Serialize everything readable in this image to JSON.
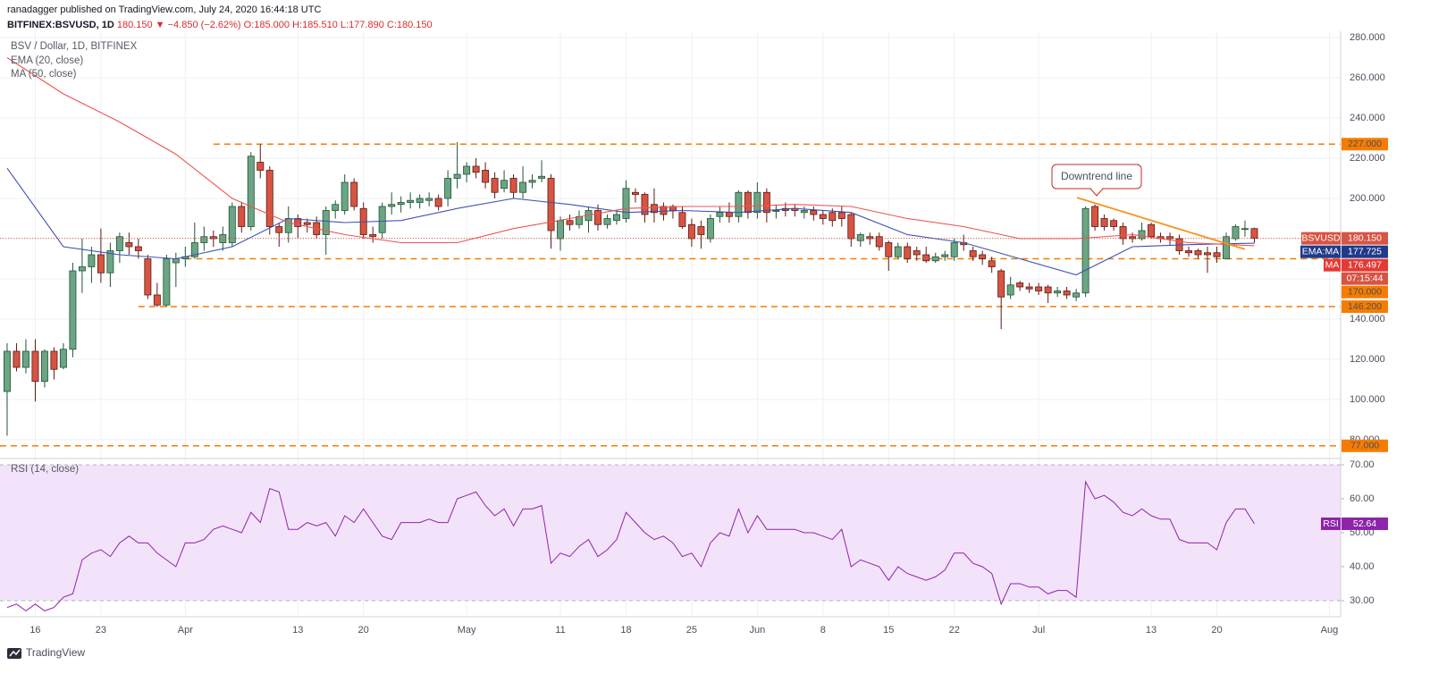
{
  "header": {
    "publisher": "ranadagger published on TradingView.com, July 24, 2020 16:44:18 UTC",
    "symbol": "BITFINEX:BSVUSD, 1D",
    "change": "180.150 ▼ −4.850 (−2.62%)",
    "ohlc": "O:185.000 H:185.510 L:177.890 C:180.150"
  },
  "footer": "TradingView",
  "chart_data": [
    {
      "type": "candlestick",
      "title": "BSV / Dollar, 1D, BITFINEX",
      "symbol_tag": "BSVUSD",
      "countdown": "07:15:44",
      "up_color": "#6ba583",
      "down_color": "#d75442",
      "open": [
        104,
        124,
        116,
        124,
        109,
        124,
        116,
        125,
        164,
        166,
        172,
        163,
        174,
        178,
        176,
        170,
        152,
        147,
        168,
        170,
        171,
        178,
        181,
        178,
        178,
        196,
        186,
        218,
        214,
        186,
        183,
        190,
        188,
        188,
        182,
        194,
        194,
        208,
        195,
        182,
        183,
        196,
        197,
        198,
        198,
        199,
        200,
        200,
        210,
        212,
        216,
        214,
        210,
        205,
        210,
        203,
        208,
        210,
        210,
        180,
        189,
        187,
        189,
        194,
        187,
        189,
        190,
        203,
        202,
        197,
        196,
        196,
        193,
        187,
        186,
        180,
        191,
        193,
        191,
        203,
        193,
        203,
        194,
        195,
        195,
        193,
        194,
        192,
        193,
        193,
        192,
        179,
        181,
        181,
        178,
        171,
        176,
        174,
        172,
        169,
        171,
        171,
        178,
        174,
        172,
        169,
        164,
        152,
        158,
        156,
        156,
        156,
        153,
        154,
        151,
        153,
        196,
        190,
        189,
        186,
        181,
        180,
        187,
        181,
        181,
        180,
        174,
        174,
        173,
        173,
        170,
        180,
        185,
        185
      ],
      "high": [
        128,
        128,
        130,
        130,
        125,
        126,
        128,
        168,
        180,
        176,
        185,
        178,
        183,
        183,
        180,
        172,
        158,
        172,
        173,
        176,
        188,
        186,
        184,
        186,
        198,
        198,
        223,
        227,
        216,
        188,
        196,
        192,
        190,
        191,
        196,
        199,
        212,
        210,
        198,
        186,
        198,
        203,
        201,
        203,
        202,
        203,
        202,
        214,
        228,
        218,
        220,
        218,
        213,
        214,
        212,
        216,
        212,
        219,
        212,
        191,
        192,
        194,
        196,
        197,
        192,
        194,
        209,
        205,
        203,
        205,
        198,
        197,
        196,
        190,
        189,
        192,
        196,
        198,
        204,
        204,
        208,
        205,
        197,
        198,
        197,
        196,
        196,
        194,
        195,
        196,
        193,
        183,
        183,
        183,
        179,
        178,
        178,
        176,
        176,
        173,
        174,
        180,
        182,
        176,
        174,
        171,
        165,
        161,
        159,
        158,
        158,
        157,
        156,
        156,
        155,
        196,
        197,
        192,
        190,
        188,
        183,
        188,
        188,
        183,
        183,
        182,
        176,
        175,
        176,
        176,
        183,
        187,
        189,
        185.51
      ],
      "low": [
        82,
        114,
        113,
        99,
        106,
        110,
        115,
        121,
        153,
        158,
        158,
        156,
        168,
        172,
        170,
        150,
        146,
        146,
        156,
        166,
        170,
        174,
        176,
        174,
        176,
        183,
        184,
        210,
        182,
        176,
        178,
        180,
        183,
        180,
        172,
        190,
        192,
        194,
        180,
        178,
        180,
        192,
        193,
        195,
        195,
        196,
        194,
        196,
        205,
        208,
        210,
        205,
        200,
        203,
        200,
        200,
        205,
        208,
        175,
        174,
        184,
        185,
        183,
        184,
        185,
        187,
        188,
        198,
        188,
        188,
        189,
        190,
        185,
        176,
        175,
        178,
        188,
        188,
        188,
        190,
        190,
        188,
        190,
        191,
        191,
        190,
        189,
        187,
        186,
        186,
        176,
        176,
        177,
        174,
        164,
        170,
        168,
        169,
        168,
        168,
        169,
        169,
        174,
        169,
        167,
        163,
        135,
        150,
        154,
        153,
        152,
        148,
        151,
        150,
        149,
        151,
        184,
        184,
        184,
        177,
        178,
        179,
        180,
        178,
        177,
        172,
        171,
        170,
        163,
        168,
        170,
        179,
        181,
        177.89
      ],
      "close": [
        124,
        116,
        124,
        109,
        124,
        115,
        125,
        164,
        166,
        172,
        163,
        174,
        181,
        176,
        174,
        152,
        147,
        170,
        170,
        171,
        178,
        181,
        180,
        182,
        196,
        186,
        221,
        214,
        186,
        183,
        190,
        186,
        187,
        182,
        194,
        197,
        208,
        196,
        182,
        181,
        196,
        197,
        198,
        199,
        200,
        200,
        196,
        210,
        212,
        216,
        213,
        208,
        203,
        209,
        203,
        208,
        209,
        211,
        184,
        189,
        187,
        191,
        194,
        187,
        190,
        192,
        205,
        202,
        192,
        193,
        192,
        194,
        186,
        180,
        182,
        190,
        193,
        191,
        203,
        193,
        203,
        193,
        194,
        194,
        194,
        194,
        192,
        190,
        189,
        190,
        180,
        182,
        180,
        176,
        171,
        176,
        170,
        172,
        169,
        171,
        172,
        178,
        177,
        171,
        170,
        166,
        151,
        157,
        156,
        155,
        154,
        153,
        154,
        152,
        153,
        195,
        186,
        186,
        186,
        180,
        180,
        184,
        181,
        180,
        180,
        174,
        173,
        172,
        172,
        171,
        181,
        186,
        185,
        180.15
      ],
      "last_price": {
        "value": 180.15,
        "label": "180.150"
      },
      "xlim": [
        -0.76,
        142.2
      ],
      "xticks": [
        {
          "value": 3,
          "label": "16"
        },
        {
          "value": 10,
          "label": "23"
        },
        {
          "value": 19,
          "label": "Apr"
        },
        {
          "value": 31,
          "label": "13"
        },
        {
          "value": 38,
          "label": "20"
        },
        {
          "value": 49,
          "label": "May"
        },
        {
          "value": 59,
          "label": "11"
        },
        {
          "value": 66,
          "label": "18"
        },
        {
          "value": 73,
          "label": "25"
        },
        {
          "value": 80,
          "label": "Jun"
        },
        {
          "value": 87,
          "label": "8"
        },
        {
          "value": 94,
          "label": "15"
        },
        {
          "value": 101,
          "label": "22"
        },
        {
          "value": 110,
          "label": "Jul"
        },
        {
          "value": 122,
          "label": "13"
        },
        {
          "value": 129,
          "label": "20"
        },
        {
          "value": 141,
          "label": "Aug"
        }
      ],
      "ylim": [
        71.11,
        283.11
      ],
      "yticks": [
        {
          "value": 80,
          "label": "80.000"
        },
        {
          "value": 100,
          "label": "100.000"
        },
        {
          "value": 120,
          "label": "120.000"
        },
        {
          "value": 140,
          "label": "140.000"
        },
        {
          "value": 160,
          "label": "160.000"
        },
        {
          "value": 180,
          "label": "180.000"
        },
        {
          "value": 200,
          "label": "200.000"
        },
        {
          "value": 220,
          "label": "220.000"
        },
        {
          "value": 240,
          "label": "240.000"
        },
        {
          "value": 260,
          "label": "260.000"
        },
        {
          "value": 280,
          "label": "280.000"
        }
      ],
      "grid": true,
      "level_color": "#f57c00",
      "levels": [
        {
          "value": 227,
          "label": "227.000",
          "start": 22
        },
        {
          "value": 170,
          "label": "170.000",
          "start": 19
        },
        {
          "value": 146.2,
          "label": "146.200",
          "start": 14
        },
        {
          "value": 77,
          "label": "77.000"
        }
      ],
      "overlays": [
        {
          "name": "EMA (20, close)",
          "tag": "EMA:MA",
          "color": "#3f51b5",
          "tag_color": "#1f3a8a",
          "x": [
            0,
            6,
            12,
            18,
            24,
            30,
            36,
            42,
            48,
            54,
            60,
            66,
            72,
            78,
            84,
            90,
            96,
            102,
            108,
            114,
            120,
            126,
            133
          ],
          "values": [
            215,
            176,
            172,
            170,
            176,
            190,
            188,
            189,
            195,
            200,
            197,
            193,
            194,
            193,
            195,
            193,
            182,
            178,
            170,
            162,
            176,
            177,
            177.725
          ]
        },
        {
          "name": "MA (50, close)",
          "tag": "MA",
          "color": "#ef5350",
          "tag_color": "#e53935",
          "x": [
            0,
            6,
            12,
            18,
            24,
            30,
            36,
            42,
            48,
            54,
            60,
            66,
            72,
            78,
            84,
            90,
            96,
            102,
            108,
            114,
            120,
            126,
            133
          ],
          "values": [
            270,
            252,
            238,
            222,
            200,
            188,
            182,
            178,
            178,
            185,
            190,
            195,
            196,
            196,
            197,
            196,
            190,
            186,
            180,
            180,
            182,
            178,
            176.497
          ]
        }
      ],
      "trendline": {
        "color": "#f7931a",
        "x": [
          114.1,
          132
        ],
        "values": [
          200.4,
          174.7
        ]
      },
      "annotation": "Downtrend line"
    },
    {
      "type": "line",
      "title": "RSI (14, close)",
      "series": [
        {
          "name": "RSI",
          "color": "#8e24aa",
          "values": [
            28,
            29,
            27,
            29,
            27,
            28,
            31,
            32,
            42,
            44,
            45,
            43,
            47,
            49,
            47,
            47,
            44,
            42,
            40,
            47,
            47,
            48,
            51,
            52,
            51,
            50,
            56,
            53,
            63,
            62,
            51,
            51,
            53,
            52,
            53,
            49,
            55,
            53,
            57,
            53,
            49,
            48,
            53,
            53,
            53,
            54,
            53,
            53,
            60,
            61,
            62,
            58,
            55,
            57,
            52,
            57,
            57,
            58,
            41,
            44,
            43,
            46,
            48,
            43,
            45,
            48,
            56,
            53,
            50,
            48,
            49,
            47,
            43,
            44,
            40,
            47,
            50,
            49,
            57,
            50,
            55,
            51,
            51,
            51,
            51,
            50,
            50,
            49,
            48,
            51,
            40,
            42,
            41,
            40,
            36,
            40,
            38,
            37,
            36,
            37,
            39,
            44,
            44,
            41,
            40,
            38,
            29,
            35,
            35,
            34,
            34,
            32,
            33,
            33,
            31,
            65,
            60,
            61,
            59,
            56,
            55,
            57,
            55,
            54,
            54,
            48,
            47,
            47,
            47,
            45,
            53,
            57,
            57,
            52.64
          ]
        }
      ],
      "ylim": [
        25.26,
        71.32
      ],
      "yticks": [
        {
          "value": 30,
          "label": "30.00"
        },
        {
          "value": 40,
          "label": "40.00"
        },
        {
          "value": 50,
          "label": "50.00"
        },
        {
          "value": 60,
          "label": "60.00"
        },
        {
          "value": 70,
          "label": "70.00"
        }
      ],
      "band": [
        30,
        70
      ],
      "band_color": "#f3e3fa"
    }
  ]
}
